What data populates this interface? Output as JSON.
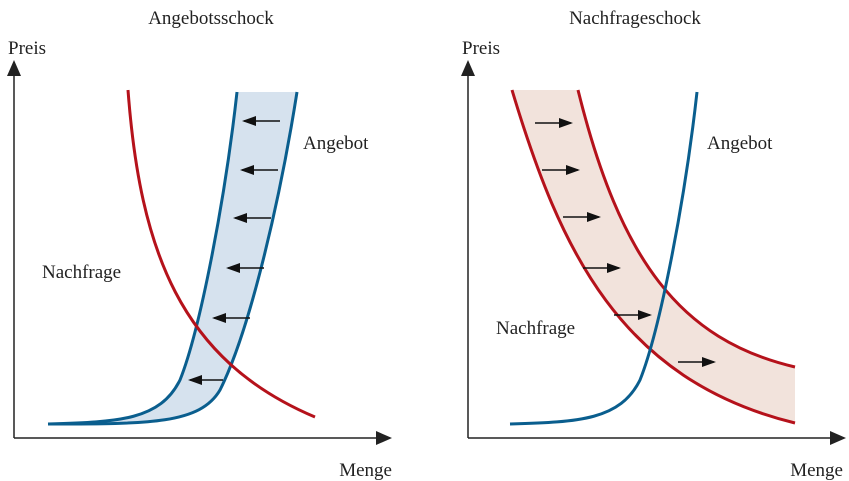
{
  "panels": [
    {
      "title": "Angebotsschock",
      "y_axis_label": "Preis",
      "x_axis_label": "Menge",
      "supply_label": "Angebot",
      "demand_label": "Nachfrage"
    },
    {
      "title": "Nachfrageschock",
      "y_axis_label": "Preis",
      "x_axis_label": "Menge",
      "supply_label": "Angebot",
      "demand_label": "Nachfrage"
    }
  ]
}
